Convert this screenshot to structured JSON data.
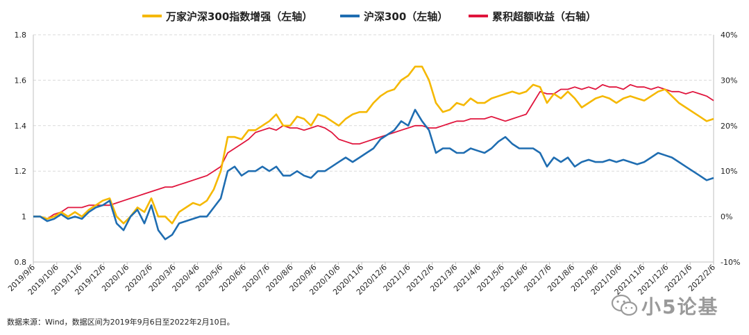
{
  "chart_data": {
    "type": "line",
    "legend_placement": "top",
    "series": [
      {
        "name": "万家沪深300指数增强（左轴）",
        "axis": "left",
        "color": "#F5B800",
        "values": [
          1.0,
          1.0,
          0.99,
          1.0,
          1.02,
          1.0,
          1.02,
          1.0,
          1.03,
          1.05,
          1.07,
          1.08,
          1.0,
          0.97,
          1.0,
          1.04,
          1.02,
          1.08,
          1.0,
          1.0,
          0.97,
          1.02,
          1.04,
          1.06,
          1.05,
          1.07,
          1.12,
          1.2,
          1.35,
          1.35,
          1.34,
          1.38,
          1.38,
          1.4,
          1.42,
          1.45,
          1.4,
          1.4,
          1.44,
          1.43,
          1.4,
          1.45,
          1.44,
          1.42,
          1.4,
          1.43,
          1.45,
          1.46,
          1.46,
          1.5,
          1.53,
          1.55,
          1.56,
          1.6,
          1.62,
          1.66,
          1.66,
          1.6,
          1.5,
          1.46,
          1.47,
          1.5,
          1.49,
          1.52,
          1.5,
          1.5,
          1.52,
          1.53,
          1.54,
          1.55,
          1.54,
          1.55,
          1.58,
          1.57,
          1.5,
          1.54,
          1.52,
          1.55,
          1.52,
          1.48,
          1.5,
          1.52,
          1.53,
          1.52,
          1.5,
          1.52,
          1.53,
          1.52,
          1.51,
          1.53,
          1.55,
          1.56,
          1.53,
          1.5,
          1.48,
          1.46,
          1.44,
          1.42,
          1.43
        ]
      },
      {
        "name": "沪深300（左轴）",
        "axis": "left",
        "color": "#1F6DB1",
        "values": [
          1.0,
          1.0,
          0.98,
          0.99,
          1.01,
          0.99,
          1.0,
          0.99,
          1.02,
          1.04,
          1.05,
          1.07,
          0.97,
          0.94,
          1.0,
          1.03,
          0.97,
          1.05,
          0.94,
          0.9,
          0.92,
          0.97,
          0.98,
          0.99,
          1.0,
          1.0,
          1.04,
          1.08,
          1.2,
          1.22,
          1.18,
          1.2,
          1.2,
          1.22,
          1.2,
          1.22,
          1.18,
          1.18,
          1.2,
          1.18,
          1.17,
          1.2,
          1.2,
          1.22,
          1.24,
          1.26,
          1.24,
          1.26,
          1.28,
          1.3,
          1.34,
          1.36,
          1.38,
          1.42,
          1.4,
          1.47,
          1.42,
          1.38,
          1.28,
          1.3,
          1.3,
          1.28,
          1.28,
          1.3,
          1.29,
          1.28,
          1.3,
          1.33,
          1.35,
          1.32,
          1.3,
          1.3,
          1.3,
          1.28,
          1.22,
          1.26,
          1.24,
          1.26,
          1.22,
          1.24,
          1.25,
          1.24,
          1.24,
          1.25,
          1.24,
          1.25,
          1.24,
          1.23,
          1.24,
          1.26,
          1.28,
          1.27,
          1.26,
          1.24,
          1.22,
          1.2,
          1.18,
          1.16,
          1.17
        ]
      },
      {
        "name": "累积超额收益（右轴）",
        "axis": "right",
        "color": "#E0143C",
        "values": [
          0.0,
          0.0,
          -0.5,
          0.5,
          1.0,
          2.0,
          2.0,
          2.0,
          2.5,
          2.5,
          2.5,
          2.5,
          3.0,
          3.5,
          4.0,
          4.5,
          5.0,
          5.5,
          6.0,
          6.5,
          6.5,
          7.0,
          7.5,
          8.0,
          8.5,
          9.0,
          10.0,
          11.0,
          14.0,
          15.0,
          16.0,
          17.0,
          18.5,
          19.0,
          19.5,
          19.0,
          20.0,
          19.5,
          19.5,
          19.0,
          19.5,
          20.0,
          19.5,
          18.5,
          17.0,
          16.5,
          16.0,
          16.0,
          16.5,
          17.0,
          17.5,
          18.0,
          18.5,
          19.0,
          19.5,
          20.0,
          20.0,
          19.5,
          19.5,
          20.0,
          20.5,
          21.0,
          21.0,
          21.5,
          21.5,
          21.5,
          22.0,
          21.5,
          21.0,
          21.5,
          22.0,
          22.5,
          25.0,
          27.5,
          27.0,
          27.0,
          28.0,
          28.0,
          28.5,
          28.0,
          28.5,
          28.0,
          29.0,
          28.5,
          28.5,
          28.0,
          29.0,
          28.5,
          28.5,
          28.0,
          28.5,
          28.0,
          27.5,
          27.5,
          27.0,
          27.5,
          27.0,
          26.5,
          25.5
        ]
      }
    ],
    "left_axis": {
      "min": 0.8,
      "max": 1.8,
      "step": 0.2,
      "tick_labels": [
        "0.8",
        "1",
        "1.2",
        "1.4",
        "1.6",
        "1.8"
      ]
    },
    "right_axis": {
      "min": -10,
      "max": 40,
      "step": 10,
      "tick_labels": [
        "-10%",
        "0%",
        "10%",
        "20%",
        "30%",
        "40%"
      ]
    },
    "x_tick_labels": [
      "2019/9/6",
      "2019/10/6",
      "2019/11/6",
      "2019/12/6",
      "2020/1/6",
      "2020/2/6",
      "2020/3/6",
      "2020/4/6",
      "2020/5/6",
      "2020/6/6",
      "2020/7/6",
      "2020/8/6",
      "2020/9/6",
      "2020/10/6",
      "2020/11/6",
      "2020/12/6",
      "2021/1/6",
      "2021/2/6",
      "2021/3/6",
      "2021/4/6",
      "2021/5/6",
      "2021/6/6",
      "2021/7/6",
      "2021/8/6",
      "2021/9/6",
      "2021/10/6",
      "2021/11/6",
      "2021/12/6",
      "2022/1/6",
      "2022/2/6"
    ],
    "grid": "horizontal dashed"
  },
  "footer": {
    "source": "数据来源：Wind，数据区间为2019年9月6日至2022年2月10日。"
  },
  "watermark": {
    "text": "小5论基"
  }
}
